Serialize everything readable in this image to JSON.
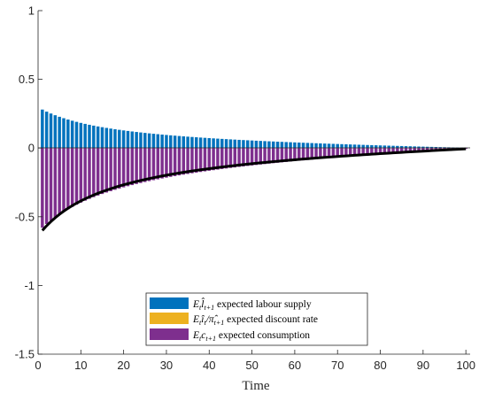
{
  "chart_data": {
    "type": "bar",
    "xlabel": "Time",
    "ylabel": "",
    "xlim": [
      0,
      101
    ],
    "ylim": [
      -1.5,
      1
    ],
    "xticks": [
      0,
      10,
      20,
      30,
      40,
      50,
      60,
      70,
      80,
      90,
      100
    ],
    "yticks": [
      1,
      0.5,
      0,
      -0.5,
      -1,
      -1.5
    ],
    "ytick_labels": [
      "1",
      "0.5",
      "0",
      "-0.5",
      "-1",
      "-1.5"
    ],
    "grid": false,
    "legend_position": "bottom-center",
    "x_start": 1,
    "x_end": 100,
    "legend": [
      {
        "name": "E_t l̂_{t+1} expected labour supply",
        "color": "#0072BD"
      },
      {
        "name": "E_t î_t/π̂_{t+1} expected discount rate",
        "color": "#EDB120"
      },
      {
        "name": "E_t c_{t+1} expected consumption",
        "color": "#7E2F8E"
      }
    ],
    "series": [
      {
        "name": "expected labour supply",
        "color": "#0072BD",
        "peak_value": 0.28,
        "last_value": 0.002,
        "decay_time": 18
      },
      {
        "name": "expected discount rate",
        "color": "#EDB120",
        "peak_value": 0.0,
        "last_value": 0.0
      },
      {
        "name": "expected consumption",
        "color": "#7E2F8E",
        "peak_value": -0.58,
        "last_value": -0.006,
        "decay_time": 21
      },
      {
        "name": "total",
        "type": "line",
        "color": "#000000",
        "peak_value": -0.6,
        "last_value": -0.006
      }
    ]
  }
}
